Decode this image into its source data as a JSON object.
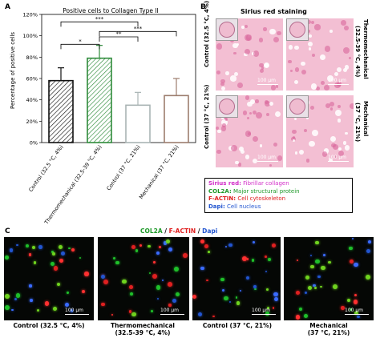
{
  "panels": {
    "A": "A",
    "B": "B",
    "C": "C"
  },
  "chart_data": {
    "type": "bar",
    "title": "Positive cells to Collagen Type II",
    "ylabel": "Percentage of positive cells",
    "ylim": [
      0,
      120
    ],
    "yticks": [
      "0%",
      "20%",
      "40%",
      "60%",
      "80%",
      "100%",
      "120%"
    ],
    "categories": [
      "Control (32.5 °C, 4%)",
      "Thermomechanical (32.5-39 °C, 4%)",
      "Control (37 °C, 21%)",
      "Mechanical (37 °C, 21%)"
    ],
    "values": [
      58,
      79,
      35,
      44
    ],
    "errors": [
      12,
      12,
      12,
      16
    ],
    "bar_colors": [
      "#111111",
      "#2e8b3a",
      "#a9b4b4",
      "#9c7d6e"
    ],
    "hatched": [
      true,
      true,
      false,
      false
    ],
    "significance": [
      {
        "from": 0,
        "to": 1,
        "label": "*"
      },
      {
        "from": 1,
        "to": 2,
        "label": "**"
      },
      {
        "from": 1,
        "to": 3,
        "label": "***"
      },
      {
        "from": 0,
        "to": 2,
        "label": "***"
      }
    ]
  },
  "staining": {
    "title": "Sirius red staining",
    "title_color": "#e040c8",
    "scale": "100 μm",
    "left_labels": [
      "Control (32.5 °C, 4%)",
      "Control (37 °C, 21%)"
    ],
    "right_labels": [
      "Thermomechanical (32.5-39 °C, 4%)",
      "Mechanical (37 °C, 21%)"
    ]
  },
  "legend": [
    {
      "name": "Sirius red:",
      "desc": "Fibrillar collagen",
      "color": "#d22fc8"
    },
    {
      "name": "COL2A:",
      "desc": "Major structural protein",
      "color": "#1f9a2a"
    },
    {
      "name": "F-ACTIN:",
      "desc": "Cell cytoskeleton",
      "color": "#e02020"
    },
    {
      "name": "Dapi:",
      "desc": "Cell nucleus",
      "color": "#2255d0"
    }
  ],
  "fluorescence": {
    "title_parts": [
      {
        "text": "COL2A",
        "color": "#1f9a2a"
      },
      {
        "text": " / ",
        "color": "#000000"
      },
      {
        "text": "F-ACTIN",
        "color": "#e02020"
      },
      {
        "text": " / ",
        "color": "#000000"
      },
      {
        "text": "Dapi",
        "color": "#2255d0"
      }
    ],
    "scale": "100 μm",
    "captions": [
      "Control (32.5 °C, 4%)",
      "Thermomechanical\n(32.5-39 °C, 4%)",
      "Control (37 °C, 21%)",
      "Mechanical\n(37 °C, 21%)"
    ]
  }
}
